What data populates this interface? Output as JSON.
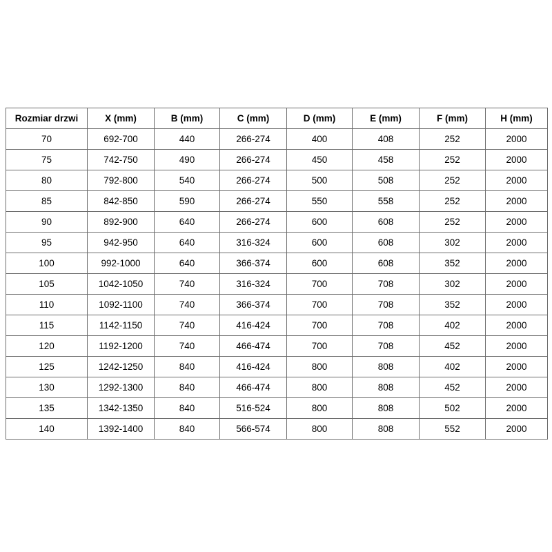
{
  "table": {
    "columns": [
      "Rozmiar drzwi",
      "X (mm)",
      "B (mm)",
      "C (mm)",
      "D (mm)",
      "E (mm)",
      "F (mm)",
      "H (mm)"
    ],
    "rows": [
      [
        "70",
        "692-700",
        "440",
        "266-274",
        "400",
        "408",
        "252",
        "2000"
      ],
      [
        "75",
        "742-750",
        "490",
        "266-274",
        "450",
        "458",
        "252",
        "2000"
      ],
      [
        "80",
        "792-800",
        "540",
        "266-274",
        "500",
        "508",
        "252",
        "2000"
      ],
      [
        "85",
        "842-850",
        "590",
        "266-274",
        "550",
        "558",
        "252",
        "2000"
      ],
      [
        "90",
        "892-900",
        "640",
        "266-274",
        "600",
        "608",
        "252",
        "2000"
      ],
      [
        "95",
        "942-950",
        "640",
        "316-324",
        "600",
        "608",
        "302",
        "2000"
      ],
      [
        "100",
        "992-1000",
        "640",
        "366-374",
        "600",
        "608",
        "352",
        "2000"
      ],
      [
        "105",
        "1042-1050",
        "740",
        "316-324",
        "700",
        "708",
        "302",
        "2000"
      ],
      [
        "110",
        "1092-1100",
        "740",
        "366-374",
        "700",
        "708",
        "352",
        "2000"
      ],
      [
        "115",
        "1142-1150",
        "740",
        "416-424",
        "700",
        "708",
        "402",
        "2000"
      ],
      [
        "120",
        "1192-1200",
        "740",
        "466-474",
        "700",
        "708",
        "452",
        "2000"
      ],
      [
        "125",
        "1242-1250",
        "840",
        "416-424",
        "800",
        "808",
        "402",
        "2000"
      ],
      [
        "130",
        "1292-1300",
        "840",
        "466-474",
        "800",
        "808",
        "452",
        "2000"
      ],
      [
        "135",
        "1342-1350",
        "840",
        "516-524",
        "800",
        "808",
        "502",
        "2000"
      ],
      [
        "140",
        "1392-1400",
        "840",
        "566-574",
        "800",
        "808",
        "552",
        "2000"
      ]
    ]
  },
  "colors": {
    "border": "#6b6b6b",
    "text": "#000000",
    "background": "#ffffff"
  }
}
